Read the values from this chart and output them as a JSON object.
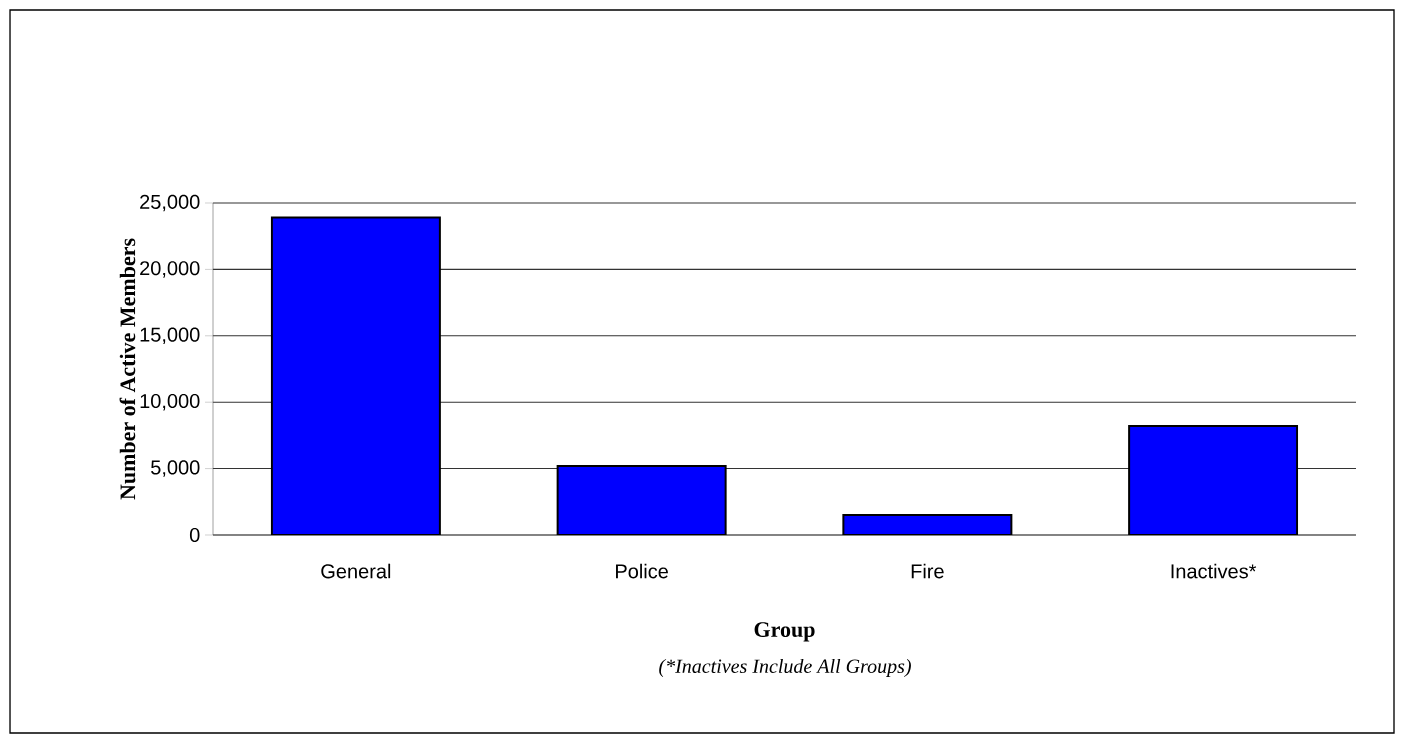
{
  "chart_data": {
    "type": "bar",
    "xlabel": "Group",
    "ylabel": "Number of Active Members",
    "annotations": [
      "(*Inactives Include All Groups)"
    ],
    "categories": [
      "General",
      "Police",
      "Fire",
      "Inactives*"
    ],
    "values": [
      23900,
      5200,
      1500,
      8200
    ],
    "color": "#0000ff",
    "ylim": [
      0,
      25000
    ],
    "yticks": [
      {
        "value": 0,
        "label": "0"
      },
      {
        "value": 5000,
        "label": "5,000"
      },
      {
        "value": 10000,
        "label": "10,000"
      },
      {
        "value": 15000,
        "label": "15,000"
      },
      {
        "value": 20000,
        "label": "20,000"
      },
      {
        "value": 25000,
        "label": "25,000"
      }
    ],
    "grid": "y"
  }
}
